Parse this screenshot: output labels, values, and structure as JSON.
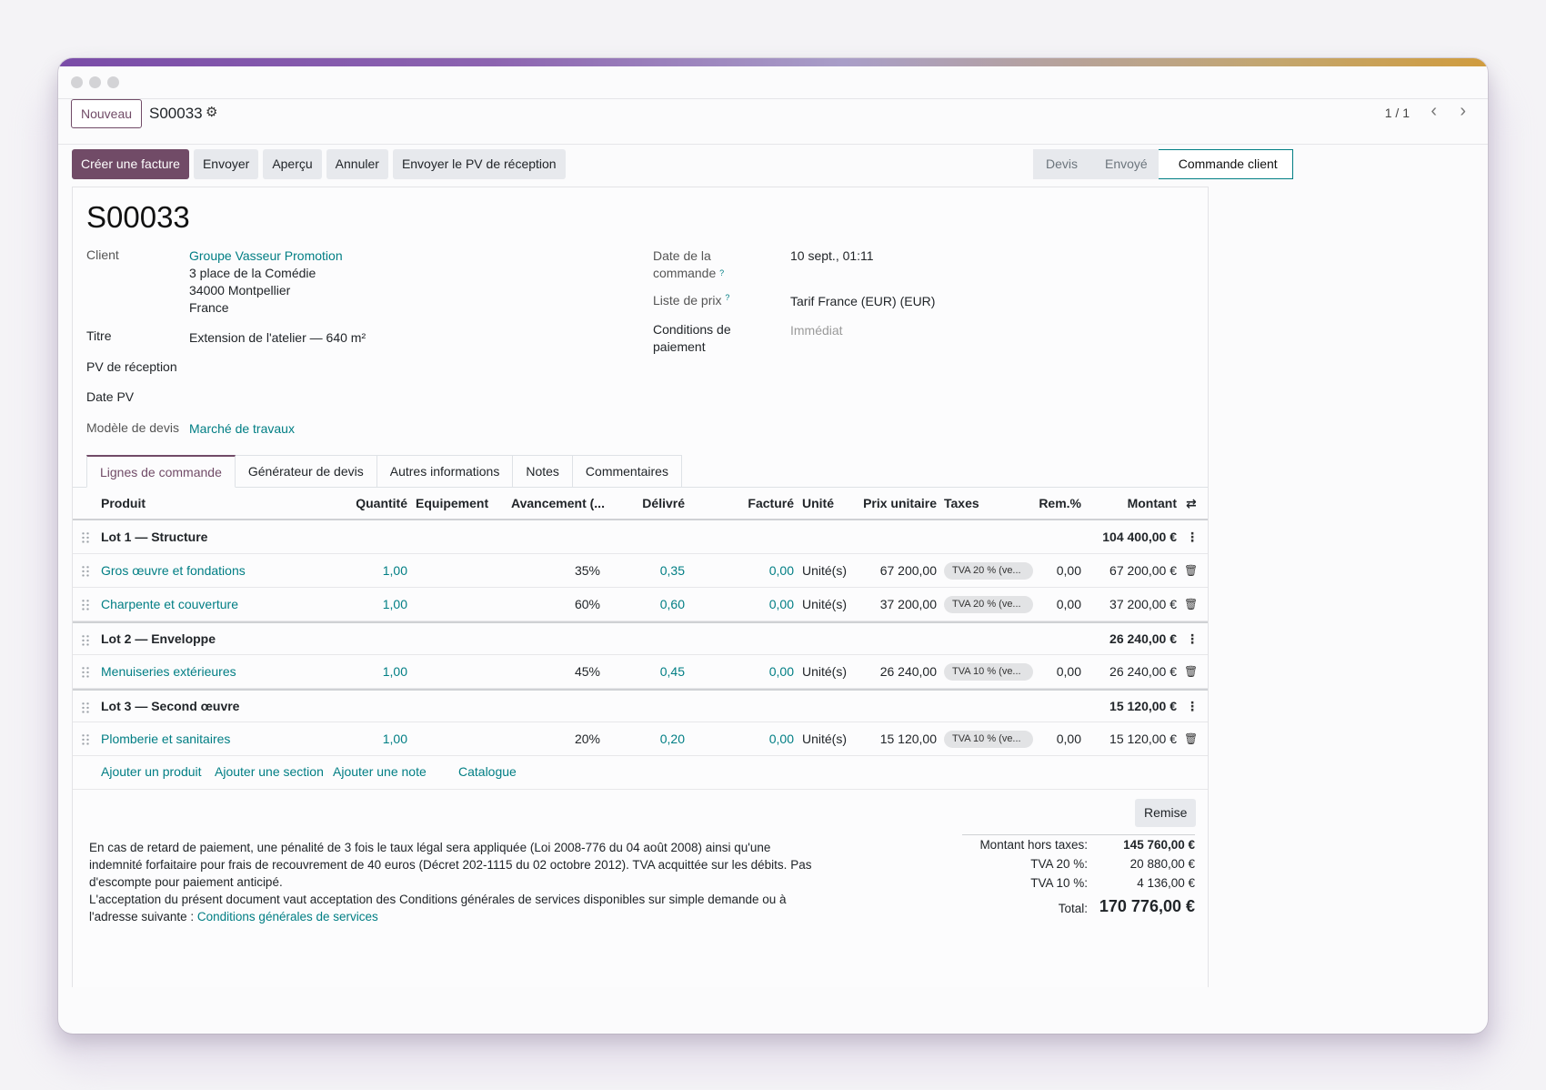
{
  "control": {
    "new_label": "Nouveau",
    "record_name": "S00033",
    "pager": "1 / 1"
  },
  "actions": {
    "create_invoice": "Créer une facture",
    "send": "Envoyer",
    "preview": "Aperçu",
    "cancel": "Annuler",
    "send_pv": "Envoyer le PV de réception"
  },
  "stages": [
    "Devis",
    "Envoyé",
    "Commande client"
  ],
  "form": {
    "title": "S00033",
    "client_label": "Client",
    "client_name": "Groupe Vasseur Promotion",
    "client_addr1": "3 place de la Comédie",
    "client_addr2": "34000 Montpellier",
    "client_addr3": "France",
    "titre_label": "Titre",
    "titre_value": "Extension de l'atelier — 640 m²",
    "pv_label": "PV de réception",
    "date_pv_label": "Date PV",
    "model_label": "Modèle de devis",
    "model_value": "Marché de travaux",
    "order_date_label_1": "Date de la",
    "order_date_label_2": "commande",
    "order_date_value": "10 sept., 01:11",
    "pricelist_label": "Liste de prix",
    "pricelist_value": "Tarif France (EUR) (EUR)",
    "terms_label_1": "Conditions de",
    "terms_label_2": "paiement",
    "terms_placeholder": "Immédiat",
    "help_mark": "?"
  },
  "tabs": [
    "Lignes de commande",
    "Générateur de devis",
    "Autres informations",
    "Notes",
    "Commentaires"
  ],
  "columns": {
    "product": "Produit",
    "qty": "Quantité",
    "equipment": "Equipement",
    "progress": "Avancement (...",
    "delivered": "Délivré",
    "invoiced": "Facturé",
    "unit": "Unité",
    "price": "Prix unitaire",
    "taxes": "Taxes",
    "discount": "Rem.%",
    "amount": "Montant"
  },
  "lines": [
    {
      "type": "section",
      "name": "Lot 1 — Structure",
      "amount": "104 400,00 €"
    },
    {
      "type": "line",
      "name": "Gros œuvre et fondations",
      "qty": "1,00",
      "progress": "35%",
      "delivered": "0,35",
      "invoiced": "0,00",
      "unit": "Unité(s)",
      "price": "67 200,00",
      "tax": "TVA 20 % (ve...",
      "discount": "0,00",
      "amount": "67 200,00 €"
    },
    {
      "type": "line",
      "name": "Charpente et couverture",
      "qty": "1,00",
      "progress": "60%",
      "delivered": "0,60",
      "invoiced": "0,00",
      "unit": "Unité(s)",
      "price": "37 200,00",
      "tax": "TVA 20 % (ve...",
      "discount": "0,00",
      "amount": "37 200,00 €"
    },
    {
      "type": "section",
      "name": "Lot 2 — Enveloppe",
      "amount": "26 240,00 €"
    },
    {
      "type": "line",
      "name": "Menuiseries extérieures",
      "qty": "1,00",
      "progress": "45%",
      "delivered": "0,45",
      "invoiced": "0,00",
      "unit": "Unité(s)",
      "price": "26 240,00",
      "tax": "TVA 10 % (ve...",
      "discount": "0,00",
      "amount": "26 240,00 €"
    },
    {
      "type": "section",
      "name": "Lot 3 — Second œuvre",
      "amount": "15 120,00 €"
    },
    {
      "type": "line",
      "name": "Plomberie et sanitaires",
      "qty": "1,00",
      "progress": "20%",
      "delivered": "0,20",
      "invoiced": "0,00",
      "unit": "Unité(s)",
      "price": "15 120,00",
      "tax": "TVA 10 % (ve...",
      "discount": "0,00",
      "amount": "15 120,00 €"
    }
  ],
  "add_links": {
    "product": "Ajouter un produit",
    "section": "Ajouter une section",
    "note": "Ajouter une note",
    "catalog": "Catalogue"
  },
  "remise_label": "Remise",
  "notes": {
    "text": "En cas de retard de paiement, une pénalité de 3 fois le taux légal sera appliquée (Loi 2008-776 du 04 août 2008) ainsi qu'une indemnité forfaitaire pour frais de recouvrement de 40 euros (Décret 202-1115 du 02 octobre 2012). TVA acquittée sur les débits. Pas d'escompte pour paiement anticipé.",
    "text2": "L'acceptation du présent document vaut acceptation des Conditions générales de services disponibles sur simple demande ou à l'adresse suivante : ",
    "link": "Conditions générales de services"
  },
  "totals": {
    "untaxed_label": "Montant hors taxes:",
    "untaxed_value": "145 760,00 €",
    "tva20_label": "TVA 20 %:",
    "tva20_value": "20 880,00 €",
    "tva10_label": "TVA 10 %:",
    "tva10_value": "4 136,00 €",
    "total_label": "Total:",
    "total_value": "170 776,00 €"
  },
  "colors": {
    "primary": "#714b67",
    "link": "#017e84"
  }
}
